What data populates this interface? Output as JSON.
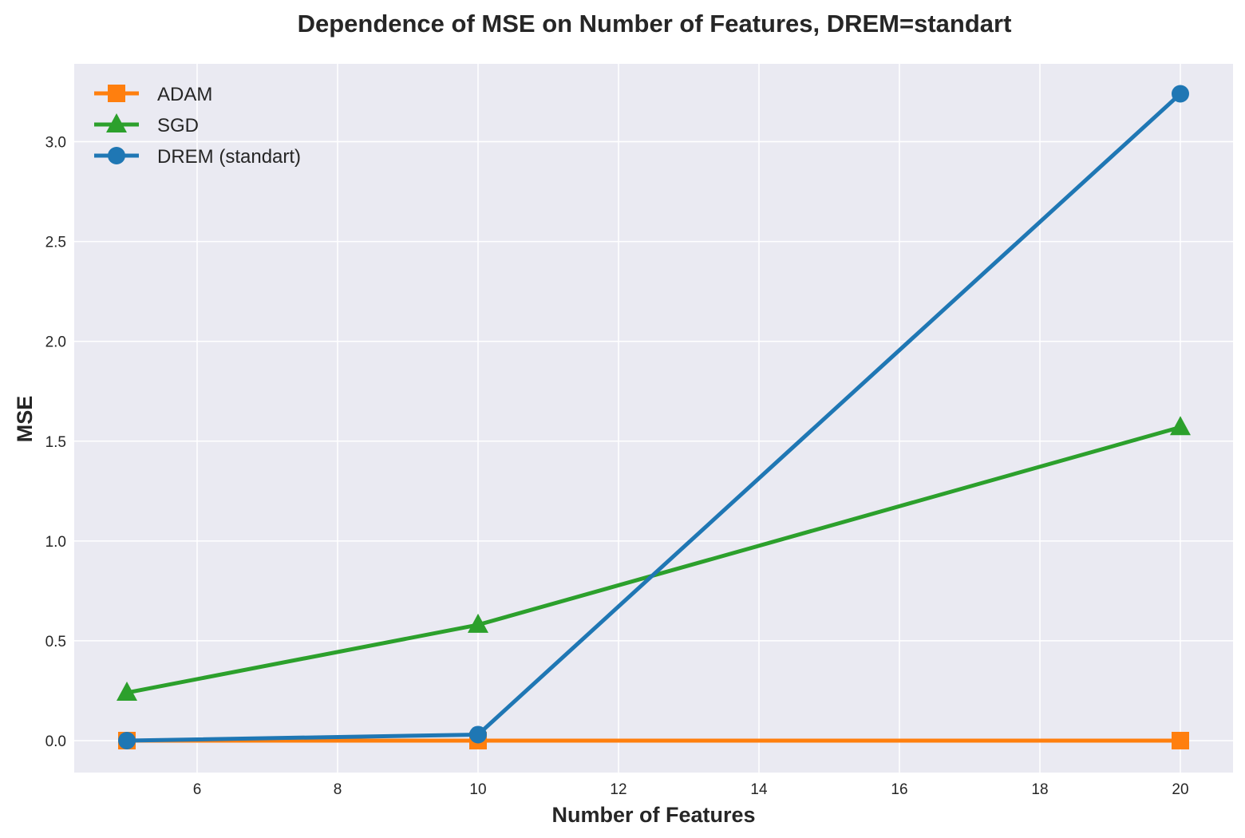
{
  "chart_data": {
    "type": "line",
    "title": "Dependence of MSE on Number of Features, DREM=standart",
    "xlabel": "Number of Features",
    "ylabel": "MSE",
    "x": [
      5,
      10,
      20
    ],
    "xlim": [
      4.25,
      20.75
    ],
    "ylim": [
      -0.16,
      3.39
    ],
    "xticks": [
      6,
      8,
      10,
      12,
      14,
      16,
      18,
      20
    ],
    "xtick_labels": [
      "6",
      "8",
      "10",
      "12",
      "14",
      "16",
      "18",
      "20"
    ],
    "yticks": [
      0.0,
      0.5,
      1.0,
      1.5,
      2.0,
      2.5,
      3.0
    ],
    "ytick_labels": [
      "0.0",
      "0.5",
      "1.0",
      "1.5",
      "2.0",
      "2.5",
      "3.0"
    ],
    "grid": true,
    "legend_position": "upper-left",
    "background": "#eaeaf2",
    "series": [
      {
        "name": "ADAM",
        "color": "#ff7f0e",
        "marker": "square",
        "values": [
          0.0,
          0.0,
          0.0
        ]
      },
      {
        "name": "SGD",
        "color": "#2ca02c",
        "marker": "triangle",
        "values": [
          0.24,
          0.58,
          1.57
        ]
      },
      {
        "name": "DREM (standart)",
        "color": "#1f77b4",
        "marker": "circle",
        "values": [
          0.0,
          0.03,
          3.24
        ]
      }
    ]
  }
}
